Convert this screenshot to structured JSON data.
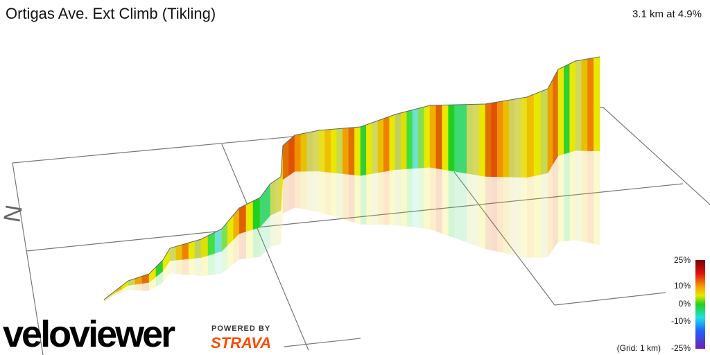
{
  "header": {
    "title": "Ortigas Ave. Ext Climb (Tikling)",
    "stats": "3.1 km at 4.9%"
  },
  "compass": "N",
  "legend": {
    "labels": [
      "25%",
      "10%",
      "0%",
      "-10%",
      "-25%"
    ],
    "grid_note": "(Grid: 1 km)"
  },
  "branding": {
    "brand": "veloviewer",
    "powered_by": "POWERED BY",
    "partner": "STRAVA"
  }
}
